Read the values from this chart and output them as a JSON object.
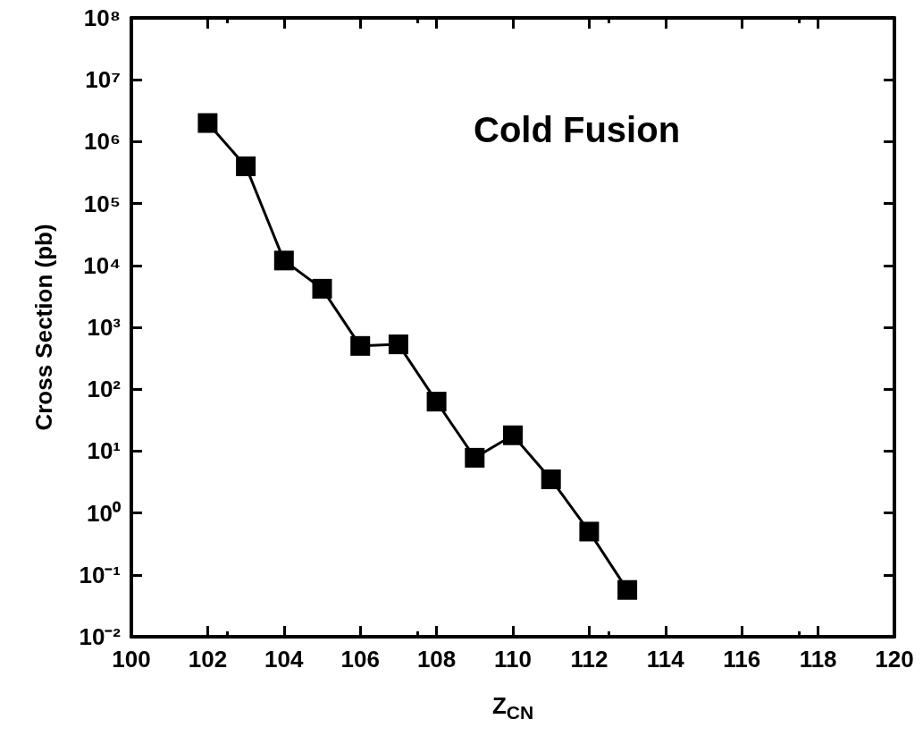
{
  "chart_data": {
    "type": "line",
    "xlabel": "Z$_{CN}$",
    "ylabel": "Cross Section (pb)",
    "annotations": [
      "Cold Fusion"
    ],
    "x": [
      102,
      103,
      104,
      105,
      106,
      107,
      108,
      109,
      110,
      111,
      112,
      113
    ],
    "series": [
      {
        "color": "#000000",
        "values": [
          2000000,
          400000,
          12000,
          4200,
          500,
          530,
          63,
          7.8,
          18,
          3.5,
          0.5,
          0.057
        ]
      }
    ],
    "log": "y",
    "marker": "square",
    "line_style": "solid",
    "grid": false,
    "xlim": [
      100,
      120
    ],
    "xticks": [
      100,
      102,
      104,
      106,
      108,
      110,
      112,
      114,
      116,
      118,
      120
    ],
    "ylim": [
      0.01,
      100000000
    ],
    "yticks": [
      {
        "value": 0.01,
        "label": "10⁻²"
      },
      {
        "value": 0.1,
        "label": "10⁻¹"
      },
      {
        "value": 1,
        "label": "10⁰"
      },
      {
        "value": 10,
        "label": "10¹"
      },
      {
        "value": 100,
        "label": "10²"
      },
      {
        "value": 1000,
        "label": "10³"
      },
      {
        "value": 10000,
        "label": "10⁴"
      },
      {
        "value": 100000,
        "label": "10⁵"
      },
      {
        "value": 1000000,
        "label": "10⁶"
      },
      {
        "value": 10000000,
        "label": "10⁷"
      },
      {
        "value": 100000000,
        "label": "10⁸"
      }
    ]
  }
}
